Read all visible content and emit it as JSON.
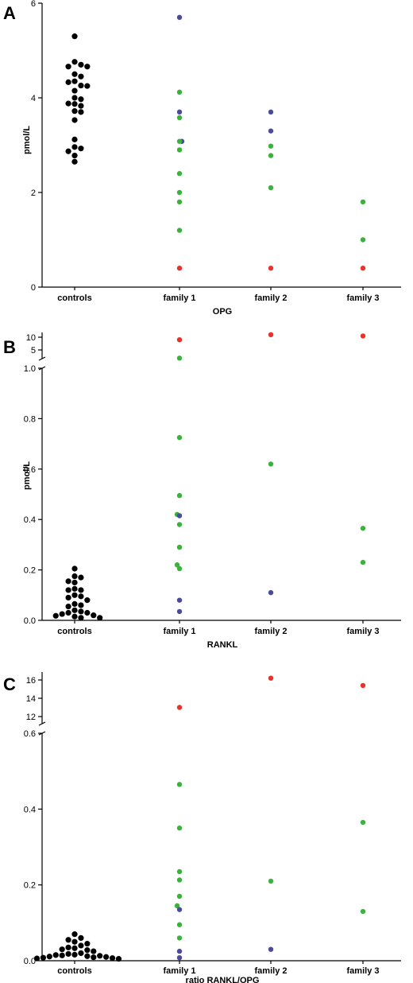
{
  "colors": {
    "control": "#000000",
    "red": "#e8322b",
    "green": "#3ab33c",
    "blue": "#4b4b9c"
  },
  "chart_data": [
    {
      "panel": "A",
      "type": "scatter",
      "xlabel": "OPG",
      "ylabel": "pmol/L",
      "categories": [
        "controls",
        "family 1",
        "family 2",
        "family 3"
      ],
      "ylim": [
        0,
        6
      ],
      "yticks": [
        "0",
        "2",
        "4",
        "6"
      ],
      "grid": false,
      "points": [
        {
          "cat": "controls",
          "color": "black",
          "values": [
            5.3,
            4.76,
            4.7,
            4.66,
            4.66,
            4.5,
            4.45,
            4.35,
            4.33,
            4.26,
            4.25,
            4.15,
            4.0,
            3.97,
            3.88,
            3.87,
            3.83,
            3.72,
            3.7,
            3.53,
            3.12,
            2.96,
            2.93,
            2.87,
            2.78,
            2.65
          ]
        },
        {
          "cat": "family 1",
          "color": "blue",
          "values": [
            5.7,
            3.7,
            3.08
          ]
        },
        {
          "cat": "family 1",
          "color": "green",
          "values": [
            4.12,
            3.58,
            3.08,
            2.9,
            2.4,
            2.0,
            1.8,
            1.2
          ]
        },
        {
          "cat": "family 1",
          "color": "red",
          "values": [
            0.4
          ]
        },
        {
          "cat": "family 2",
          "color": "blue",
          "values": [
            3.7,
            3.3
          ]
        },
        {
          "cat": "family 2",
          "color": "green",
          "values": [
            2.98,
            2.78,
            2.1
          ]
        },
        {
          "cat": "family 2",
          "color": "red",
          "values": [
            0.4
          ]
        },
        {
          "cat": "family 3",
          "color": "green",
          "values": [
            1.8,
            1.0
          ]
        },
        {
          "cat": "family 3",
          "color": "red",
          "values": [
            0.4
          ]
        }
      ]
    },
    {
      "panel": "B",
      "type": "scatter",
      "xlabel": "RANKL",
      "ylabel": "pmol/L",
      "categories": [
        "controls",
        "family 1",
        "family 2",
        "family 3"
      ],
      "ylim": [
        0,
        1.0
      ],
      "ylim_upper": [
        5,
        10
      ],
      "axis_break": true,
      "yticks": [
        "0.0",
        "0.2",
        "0.4",
        "0.6",
        "0.8",
        "1.0",
        "5",
        "10"
      ],
      "grid": false,
      "points": [
        {
          "cat": "controls",
          "color": "black",
          "values": [
            0.205,
            0.175,
            0.17,
            0.155,
            0.15,
            0.125,
            0.12,
            0.12,
            0.1,
            0.095,
            0.09,
            0.08,
            0.065,
            0.06,
            0.055,
            0.04,
            0.035,
            0.03,
            0.03,
            0.025,
            0.02,
            0.018,
            0.015,
            0.01,
            0.01
          ]
        },
        {
          "cat": "family 1",
          "color": "red",
          "values": [
            9.0
          ]
        },
        {
          "cat": "family 1",
          "color": "green",
          "values": [
            1.04,
            0.725,
            0.495,
            0.42,
            0.38,
            0.29,
            0.22,
            0.205
          ]
        },
        {
          "cat": "family 1",
          "color": "blue",
          "values": [
            0.415,
            0.08,
            0.035
          ]
        },
        {
          "cat": "family 2",
          "color": "red",
          "values": [
            11.0
          ]
        },
        {
          "cat": "family 2",
          "color": "green",
          "values": [
            0.62
          ]
        },
        {
          "cat": "family 2",
          "color": "blue",
          "values": [
            0.11
          ]
        },
        {
          "cat": "family 3",
          "color": "red",
          "values": [
            10.5
          ]
        },
        {
          "cat": "family 3",
          "color": "green",
          "values": [
            0.365,
            0.23
          ]
        }
      ]
    },
    {
      "panel": "C",
      "type": "scatter",
      "xlabel": "ratio RANKL/OPG",
      "ylabel": "",
      "categories": [
        "controls",
        "family 1",
        "family 2",
        "family 3"
      ],
      "ylim": [
        0,
        0.6
      ],
      "ylim_upper": [
        11,
        17
      ],
      "axis_break": true,
      "yticks": [
        "0.0",
        "0.2",
        "0.4",
        "0.6",
        "12",
        "14",
        "16"
      ],
      "grid": false,
      "points": [
        {
          "cat": "controls",
          "color": "black",
          "values": [
            0.07,
            0.06,
            0.055,
            0.05,
            0.045,
            0.04,
            0.035,
            0.033,
            0.03,
            0.028,
            0.025,
            0.02,
            0.018,
            0.016,
            0.015,
            0.014,
            0.013,
            0.012,
            0.011,
            0.01,
            0.009,
            0.008,
            0.007,
            0.006,
            0.005
          ]
        },
        {
          "cat": "family 1",
          "color": "red",
          "values": [
            13.0
          ]
        },
        {
          "cat": "family 1",
          "color": "green",
          "values": [
            0.465,
            0.35,
            0.235,
            0.213,
            0.17,
            0.145,
            0.095,
            0.06
          ]
        },
        {
          "cat": "family 1",
          "color": "blue",
          "values": [
            0.135,
            0.025,
            0.008
          ]
        },
        {
          "cat": "family 2",
          "color": "red",
          "values": [
            16.2
          ]
        },
        {
          "cat": "family 2",
          "color": "green",
          "values": [
            0.21
          ]
        },
        {
          "cat": "family 2",
          "color": "blue",
          "values": [
            0.03
          ]
        },
        {
          "cat": "family 3",
          "color": "red",
          "values": [
            15.4
          ]
        },
        {
          "cat": "family 3",
          "color": "green",
          "values": [
            0.365,
            0.13
          ]
        }
      ]
    }
  ]
}
